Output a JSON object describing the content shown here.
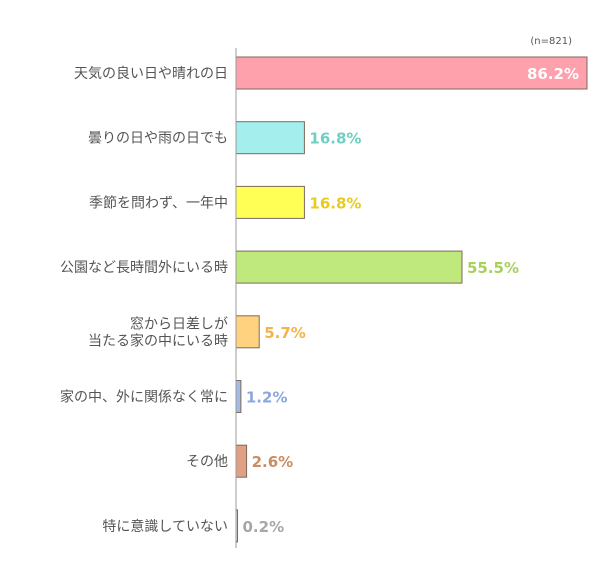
{
  "chart_data": {
    "type": "bar",
    "orientation": "horizontal",
    "sample_note": "(n=821)",
    "categories": [
      [
        "天気の良い日や晴れの日"
      ],
      [
        "曇りの日や雨の日でも"
      ],
      [
        "季節を問わず、一年中"
      ],
      [
        "公園など長時間外にいる時"
      ],
      [
        "窓から日差しが",
        "当たる家の中にいる時"
      ],
      [
        "家の中、外に関係なく常に"
      ],
      [
        "その他"
      ],
      [
        "特に意識していない"
      ]
    ],
    "values": [
      86.2,
      16.8,
      16.8,
      55.5,
      5.7,
      1.2,
      2.6,
      0.2
    ],
    "value_labels": [
      "86.2%",
      "16.8%",
      "16.8%",
      "55.5%",
      "5.7%",
      "1.2%",
      "2.6%",
      "0.2%"
    ],
    "xlim": [
      0,
      100
    ],
    "grid": false,
    "legend": "none",
    "colors": [
      "#ffa0ad",
      "#a5eeee",
      "#ffff55",
      "#bfe97d",
      "#ffd27f",
      "#a3bbe6",
      "#e1a084",
      "#dddddd"
    ],
    "value_label_colors": [
      "#ffffff",
      "#6fcfc2",
      "#e7cc1c",
      "#a6d25c",
      "#f4b24a",
      "#8aa8dc",
      "#cc8c62",
      "#a7a7a7"
    ],
    "value_label_inside": [
      true,
      false,
      false,
      false,
      false,
      false,
      false,
      false
    ],
    "bar_stroke": "#7c6a5a",
    "axis_color": "#9b9b9b"
  }
}
